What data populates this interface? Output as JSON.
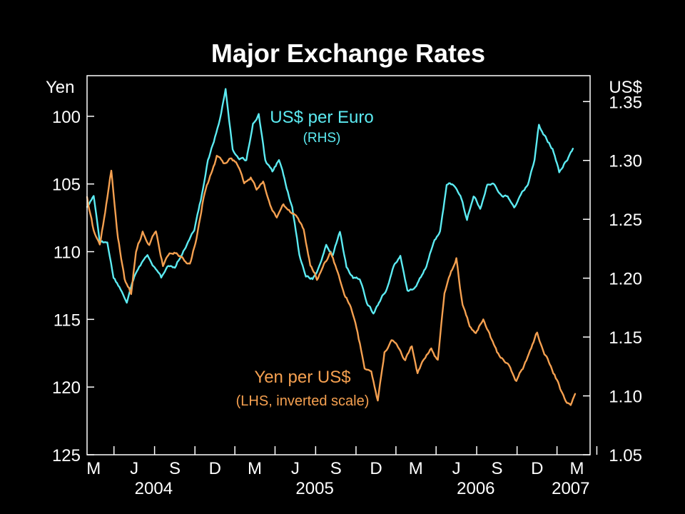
{
  "chart_data": {
    "type": "line",
    "title": "Major Exchange Rates",
    "left_axis": {
      "unit_label": "Yen",
      "ticks": [
        100,
        105,
        110,
        115,
        120,
        125
      ],
      "tick_labels": [
        "100",
        "105",
        "110",
        "115",
        "120",
        "125"
      ],
      "range": [
        97,
        125
      ],
      "inverted": true
    },
    "right_axis": {
      "unit_label": "US$",
      "ticks": [
        1.35,
        1.3,
        1.25,
        1.2,
        1.15,
        1.1,
        1.05
      ],
      "tick_labels": [
        "1.35",
        "1.30",
        "1.25",
        "1.20",
        "1.15",
        "1.10",
        "1.05"
      ],
      "range": [
        1.05,
        1.372
      ]
    },
    "x_axis": {
      "start": "2004-02-15",
      "end": "2007-03-31",
      "month_labels": [
        {
          "date": "2004-03-01",
          "label": "M"
        },
        {
          "date": "2004-06-01",
          "label": "J"
        },
        {
          "date": "2004-09-01",
          "label": "S"
        },
        {
          "date": "2004-12-01",
          "label": "D"
        },
        {
          "date": "2005-03-01",
          "label": "M"
        },
        {
          "date": "2005-06-01",
          "label": "J"
        },
        {
          "date": "2005-09-01",
          "label": "S"
        },
        {
          "date": "2005-12-01",
          "label": "D"
        },
        {
          "date": "2006-03-01",
          "label": "M"
        },
        {
          "date": "2006-06-01",
          "label": "J"
        },
        {
          "date": "2006-09-01",
          "label": "S"
        },
        {
          "date": "2006-12-01",
          "label": "D"
        },
        {
          "date": "2007-03-01",
          "label": "M"
        }
      ],
      "year_labels": [
        {
          "date": "2004-07-15",
          "label": "2004"
        },
        {
          "date": "2005-07-15",
          "label": "2005"
        },
        {
          "date": "2006-07-15",
          "label": "2006"
        },
        {
          "date": "2007-02-15",
          "label": "2007"
        }
      ]
    },
    "series": [
      {
        "name": "US$ per Euro",
        "axis": "right",
        "annotation": [
          "US$ per Euro",
          "(RHS)"
        ],
        "color": "#5CEBF2",
        "points": [
          [
            "2004-02-15",
            1.26
          ],
          [
            "2004-03-01",
            1.27
          ],
          [
            "2004-03-15",
            1.23
          ],
          [
            "2004-04-01",
            1.23
          ],
          [
            "2004-04-15",
            1.2
          ],
          [
            "2004-05-01",
            1.19
          ],
          [
            "2004-05-15",
            1.18
          ],
          [
            "2004-06-01",
            1.2
          ],
          [
            "2004-06-15",
            1.21
          ],
          [
            "2004-07-01",
            1.22
          ],
          [
            "2004-07-15",
            1.21
          ],
          [
            "2004-08-01",
            1.2
          ],
          [
            "2004-08-15",
            1.21
          ],
          [
            "2004-09-01",
            1.21
          ],
          [
            "2004-09-15",
            1.22
          ],
          [
            "2004-10-01",
            1.23
          ],
          [
            "2004-10-15",
            1.24
          ],
          [
            "2004-11-01",
            1.27
          ],
          [
            "2004-11-15",
            1.3
          ],
          [
            "2004-12-01",
            1.32
          ],
          [
            "2004-12-15",
            1.34
          ],
          [
            "2004-12-25",
            1.36
          ],
          [
            "2005-01-10",
            1.31
          ],
          [
            "2005-01-25",
            1.3
          ],
          [
            "2005-02-10",
            1.3
          ],
          [
            "2005-02-25",
            1.33
          ],
          [
            "2005-03-10",
            1.34
          ],
          [
            "2005-03-25",
            1.3
          ],
          [
            "2005-04-10",
            1.29
          ],
          [
            "2005-04-25",
            1.3
          ],
          [
            "2005-05-10",
            1.28
          ],
          [
            "2005-05-25",
            1.26
          ],
          [
            "2005-06-10",
            1.22
          ],
          [
            "2005-06-25",
            1.2
          ],
          [
            "2005-07-10",
            1.2
          ],
          [
            "2005-07-25",
            1.21
          ],
          [
            "2005-08-10",
            1.23
          ],
          [
            "2005-08-25",
            1.22
          ],
          [
            "2005-09-10",
            1.24
          ],
          [
            "2005-09-25",
            1.21
          ],
          [
            "2005-10-10",
            1.2
          ],
          [
            "2005-10-25",
            1.2
          ],
          [
            "2005-11-10",
            1.18
          ],
          [
            "2005-11-25",
            1.17
          ],
          [
            "2005-12-10",
            1.18
          ],
          [
            "2005-12-25",
            1.19
          ],
          [
            "2006-01-10",
            1.21
          ],
          [
            "2006-01-25",
            1.22
          ],
          [
            "2006-02-10",
            1.19
          ],
          [
            "2006-02-25",
            1.19
          ],
          [
            "2006-03-10",
            1.2
          ],
          [
            "2006-03-25",
            1.21
          ],
          [
            "2006-04-10",
            1.23
          ],
          [
            "2006-04-25",
            1.24
          ],
          [
            "2006-05-10",
            1.28
          ],
          [
            "2006-05-25",
            1.28
          ],
          [
            "2006-06-10",
            1.27
          ],
          [
            "2006-06-25",
            1.25
          ],
          [
            "2006-07-10",
            1.27
          ],
          [
            "2006-07-25",
            1.26
          ],
          [
            "2006-08-10",
            1.28
          ],
          [
            "2006-08-25",
            1.28
          ],
          [
            "2006-09-10",
            1.27
          ],
          [
            "2006-09-25",
            1.27
          ],
          [
            "2006-10-10",
            1.26
          ],
          [
            "2006-10-25",
            1.27
          ],
          [
            "2006-11-10",
            1.28
          ],
          [
            "2006-11-25",
            1.3
          ],
          [
            "2006-12-05",
            1.33
          ],
          [
            "2006-12-20",
            1.32
          ],
          [
            "2007-01-05",
            1.31
          ],
          [
            "2007-01-20",
            1.29
          ],
          [
            "2007-02-05",
            1.3
          ],
          [
            "2007-02-20",
            1.31
          ]
        ]
      },
      {
        "name": "Yen per US$",
        "axis": "left",
        "annotation": [
          "Yen per US$",
          "(LHS, inverted scale)"
        ],
        "color": "#F5A050",
        "points": [
          [
            "2004-02-15",
            106.0
          ],
          [
            "2004-03-01",
            108.5
          ],
          [
            "2004-03-15",
            109.5
          ],
          [
            "2004-04-01",
            106.0
          ],
          [
            "2004-04-10",
            104.0
          ],
          [
            "2004-04-25",
            109.0
          ],
          [
            "2004-05-10",
            112.0
          ],
          [
            "2004-05-25",
            113.0
          ],
          [
            "2004-06-05",
            110.0
          ],
          [
            "2004-06-20",
            108.5
          ],
          [
            "2004-07-05",
            109.5
          ],
          [
            "2004-07-20",
            108.5
          ],
          [
            "2004-08-05",
            111.0
          ],
          [
            "2004-08-20",
            110.0
          ],
          [
            "2004-09-05",
            110.0
          ],
          [
            "2004-09-20",
            110.5
          ],
          [
            "2004-10-05",
            111.0
          ],
          [
            "2004-10-20",
            109.0
          ],
          [
            "2004-11-05",
            106.0
          ],
          [
            "2004-11-20",
            104.5
          ],
          [
            "2004-12-05",
            103.0
          ],
          [
            "2004-12-20",
            103.5
          ],
          [
            "2005-01-05",
            103.0
          ],
          [
            "2005-01-20",
            103.5
          ],
          [
            "2005-02-05",
            105.0
          ],
          [
            "2005-02-20",
            104.5
          ],
          [
            "2005-03-05",
            105.5
          ],
          [
            "2005-03-20",
            105.0
          ],
          [
            "2005-04-05",
            106.5
          ],
          [
            "2005-04-20",
            107.5
          ],
          [
            "2005-05-05",
            106.5
          ],
          [
            "2005-05-20",
            107.0
          ],
          [
            "2005-06-05",
            107.5
          ],
          [
            "2005-06-20",
            108.5
          ],
          [
            "2005-07-05",
            111.0
          ],
          [
            "2005-07-20",
            112.0
          ],
          [
            "2005-08-05",
            111.0
          ],
          [
            "2005-08-20",
            110.0
          ],
          [
            "2005-09-05",
            111.5
          ],
          [
            "2005-09-20",
            113.0
          ],
          [
            "2005-10-05",
            114.0
          ],
          [
            "2005-10-20",
            116.0
          ],
          [
            "2005-11-05",
            118.5
          ],
          [
            "2005-11-20",
            119.0
          ],
          [
            "2005-12-05",
            121.0
          ],
          [
            "2005-12-20",
            117.5
          ],
          [
            "2006-01-05",
            116.5
          ],
          [
            "2006-01-20",
            117.0
          ],
          [
            "2006-02-05",
            118.0
          ],
          [
            "2006-02-20",
            117.0
          ],
          [
            "2006-03-05",
            119.0
          ],
          [
            "2006-03-20",
            118.0
          ],
          [
            "2006-04-05",
            117.0
          ],
          [
            "2006-04-20",
            118.0
          ],
          [
            "2006-05-05",
            113.0
          ],
          [
            "2006-05-20",
            111.5
          ],
          [
            "2006-06-01",
            110.5
          ],
          [
            "2006-06-15",
            114.0
          ],
          [
            "2006-07-01",
            115.5
          ],
          [
            "2006-07-15",
            116.0
          ],
          [
            "2006-08-01",
            115.0
          ],
          [
            "2006-08-15",
            116.0
          ],
          [
            "2006-09-01",
            117.5
          ],
          [
            "2006-09-15",
            118.0
          ],
          [
            "2006-10-01",
            118.5
          ],
          [
            "2006-10-15",
            119.5
          ],
          [
            "2006-11-01",
            118.5
          ],
          [
            "2006-11-15",
            117.5
          ],
          [
            "2006-12-01",
            116.0
          ],
          [
            "2006-12-15",
            117.5
          ],
          [
            "2007-01-01",
            118.5
          ],
          [
            "2007-01-15",
            119.5
          ],
          [
            "2007-02-01",
            121.0
          ],
          [
            "2007-02-15",
            121.5
          ],
          [
            "2007-02-25",
            120.5
          ]
        ]
      }
    ]
  }
}
